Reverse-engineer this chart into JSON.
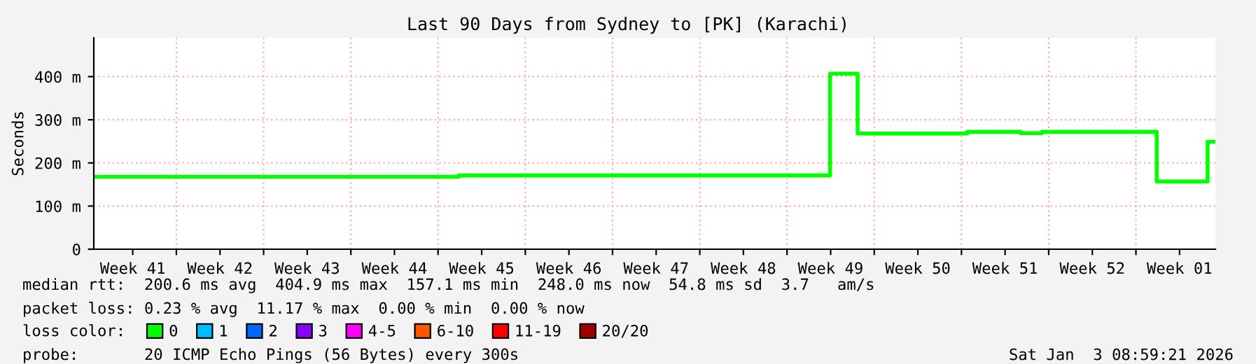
{
  "chart_data": {
    "type": "step",
    "title": "Last 90 Days from Sydney to [PK] (Karachi)",
    "ylabel": "Seconds",
    "x": [
      "2025-10-06T09:00",
      "2025-11-04T16:00",
      "2025-12-04T11:00",
      "2025-12-06T16:00",
      "2025-12-15T11:00",
      "2025-12-19T18:00",
      "2025-12-21T11:00",
      "2025-12-30T16:00",
      "2026-01-03T18:00",
      "2026-01-04T09:00"
    ],
    "series": [
      {
        "name": "0",
        "color": "#00ff00",
        "values": [
          168,
          171,
          407,
          268,
          272,
          269,
          272,
          157,
          249,
          249
        ]
      },
      {
        "name": "1",
        "color": "#00bbff",
        "values": [
          null,
          null,
          null,
          null,
          null,
          null,
          null,
          null,
          null,
          null
        ]
      },
      {
        "name": "2",
        "color": "#0066ff",
        "values": [
          null,
          null,
          null,
          null,
          null,
          null,
          null,
          null,
          null,
          null
        ]
      },
      {
        "name": "3",
        "color": "#8800ff",
        "values": [
          null,
          null,
          null,
          null,
          null,
          null,
          null,
          null,
          null,
          null
        ]
      },
      {
        "name": "4-5",
        "color": "#ff00ff",
        "values": [
          null,
          null,
          null,
          null,
          null,
          null,
          null,
          null,
          null,
          null
        ]
      },
      {
        "name": "6-10",
        "color": "#ff5500",
        "values": [
          null,
          null,
          null,
          null,
          null,
          null,
          null,
          null,
          null,
          null
        ]
      },
      {
        "name": "11-19",
        "color": "#ff0000",
        "values": [
          null,
          null,
          null,
          null,
          null,
          null,
          null,
          null,
          null,
          null
        ]
      },
      {
        "name": "20/20",
        "color": "#a10000",
        "values": [
          null,
          null,
          null,
          null,
          null,
          null,
          null,
          null,
          null,
          null
        ]
      }
    ],
    "legend": "bottom",
    "legend_title": "loss color:",
    "xlim": [
      "2025-10-06T09:00",
      "2026-01-04T09:00"
    ],
    "xticks": [
      {
        "value": "2025-10-09T12:00",
        "label": "Week 41"
      },
      {
        "value": "2025-10-13",
        "label": null
      },
      {
        "value": "2025-10-16T12:00",
        "label": "Week 42"
      },
      {
        "value": "2025-10-20",
        "label": null
      },
      {
        "value": "2025-10-23T12:00",
        "label": "Week 43"
      },
      {
        "value": "2025-10-27",
        "label": null
      },
      {
        "value": "2025-10-30T12:00",
        "label": "Week 44"
      },
      {
        "value": "2025-11-03",
        "label": null
      },
      {
        "value": "2025-11-06T12:00",
        "label": "Week 45"
      },
      {
        "value": "2025-11-10",
        "label": null
      },
      {
        "value": "2025-11-13T12:00",
        "label": "Week 46"
      },
      {
        "value": "2025-11-17",
        "label": null
      },
      {
        "value": "2025-11-20T12:00",
        "label": "Week 47"
      },
      {
        "value": "2025-11-24",
        "label": null
      },
      {
        "value": "2025-11-27T12:00",
        "label": "Week 48"
      },
      {
        "value": "2025-12-01",
        "label": null
      },
      {
        "value": "2025-12-04T12:00",
        "label": "Week 49"
      },
      {
        "value": "2025-12-08",
        "label": null
      },
      {
        "value": "2025-12-11T12:00",
        "label": "Week 50"
      },
      {
        "value": "2025-12-15",
        "label": null
      },
      {
        "value": "2025-12-18T12:00",
        "label": "Week 51"
      },
      {
        "value": "2025-12-22",
        "label": null
      },
      {
        "value": "2025-12-25T12:00",
        "label": "Week 52"
      },
      {
        "value": "2025-12-29",
        "label": null
      },
      {
        "value": "2026-01-01T12:00",
        "label": "Week 01"
      }
    ],
    "ylim": [
      0,
      490
    ],
    "yticks": [
      0,
      {
        "value": 100,
        "label": "100 m"
      },
      {
        "value": 200,
        "label": "200 m"
      },
      {
        "value": 300,
        "label": "300 m"
      },
      {
        "value": 400,
        "label": "400 m"
      }
    ],
    "grid": true,
    "annotations": [
      "median rtt:  200.6 ms avg  404.9 ms max  157.1 ms min  248.0 ms now  54.8 ms sd  3.7   am/s",
      "packet loss: 0.23 % avg  11.17 % max  0.00 % min  0.00 % now",
      "probe:       20 ICMP Echo Pings (56 Bytes) every 300s",
      "Sat Jan  3 08:59:21 2026"
    ]
  }
}
